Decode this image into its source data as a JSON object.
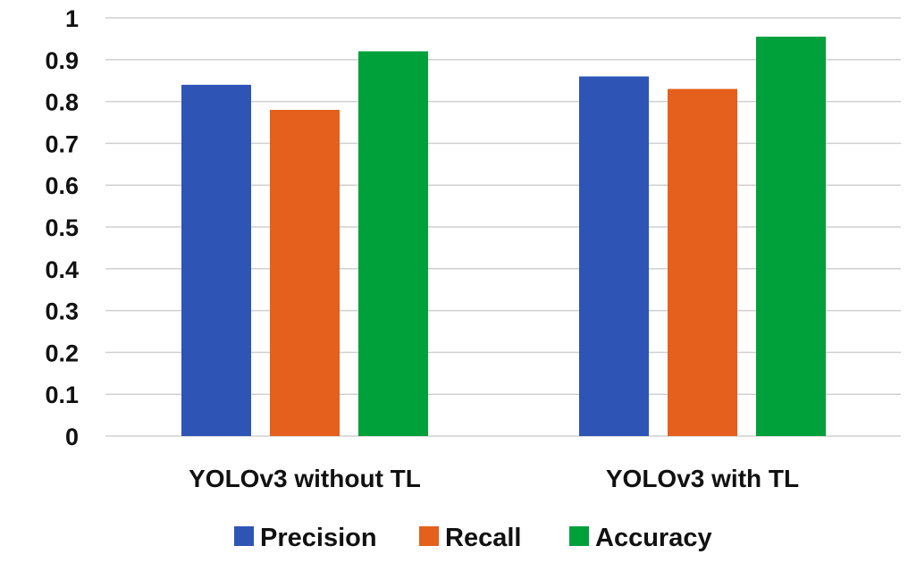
{
  "chart_data": {
    "type": "bar",
    "categories": [
      "YOLOv3 without TL",
      "YOLOv3 with TL"
    ],
    "series": [
      {
        "name": "Precision",
        "color": "#2E54B5",
        "values": [
          0.84,
          0.86
        ]
      },
      {
        "name": "Recall",
        "color": "#E55F1D",
        "values": [
          0.78,
          0.83
        ]
      },
      {
        "name": "Accuracy",
        "color": "#00A03A",
        "values": [
          0.92,
          0.955
        ]
      }
    ],
    "y_ticks": [
      "0",
      "0.1",
      "0.2",
      "0.3",
      "0.4",
      "0.5",
      "0.6",
      "0.7",
      "0.8",
      "0.9",
      "1"
    ],
    "ylim": [
      0,
      1
    ],
    "grid": true,
    "legend_position": "bottom"
  }
}
